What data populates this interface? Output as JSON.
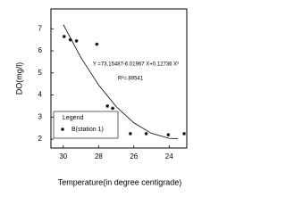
{
  "chart_data": {
    "type": "scatter",
    "xlabel": "Temperature(in degree centigrade)",
    "ylabel": "DO(mg/l)",
    "annotations": [
      "Y =73.15487-6.01967 X+0.12736 X²",
      "R²=.89541"
    ],
    "legend_title": "Legend",
    "legend": "lower left",
    "xlim": [
      30.7,
      23.0
    ],
    "xticks": [
      30,
      28,
      26,
      24
    ],
    "ylim": [
      1.6,
      7.9
    ],
    "yticks": [
      2,
      3,
      4,
      5,
      6,
      7
    ],
    "series": [
      {
        "name": "B(station 1)",
        "color": "#000000",
        "x": [
          29.95,
          29.6,
          29.25,
          28.1,
          27.5,
          27.2,
          26.2,
          25.3,
          24.05,
          23.15
        ],
        "values": [
          6.65,
          6.5,
          6.45,
          6.3,
          3.5,
          3.4,
          2.25,
          2.25,
          2.2,
          2.25
        ]
      },
      {
        "type": "line",
        "color": "#000000",
        "x": [
          30,
          29,
          28,
          27,
          26,
          25,
          24,
          23.5
        ],
        "values": [
          7.19,
          5.695,
          4.455,
          3.472,
          2.74,
          2.265,
          2.04,
          2.025
        ]
      }
    ]
  }
}
